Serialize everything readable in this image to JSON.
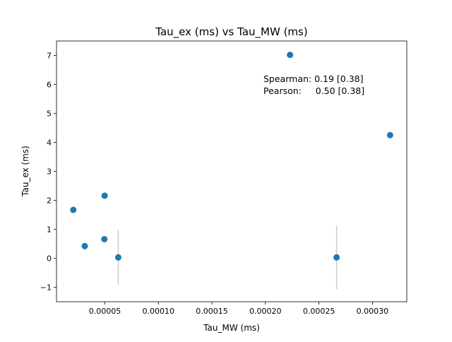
{
  "chart_data": {
    "type": "scatter",
    "title": "Tau_ex (ms) vs Tau_MW (ms)",
    "xlabel": "Tau_MW (ms)",
    "ylabel": "Tau_ex (ms)",
    "xlim": [
      4.8e-06,
      0.0003321
    ],
    "ylim": [
      -1.5,
      7.5
    ],
    "xticks": [
      {
        "value": 5e-05,
        "label": "0.00005"
      },
      {
        "value": 0.0001,
        "label": "0.00010"
      },
      {
        "value": 0.00015,
        "label": "0.00015"
      },
      {
        "value": 0.0002,
        "label": "0.00020"
      },
      {
        "value": 0.00025,
        "label": "0.00025"
      },
      {
        "value": 0.0003,
        "label": "0.00030"
      }
    ],
    "yticks": [
      {
        "value": -1,
        "label": "−1"
      },
      {
        "value": 0,
        "label": "0"
      },
      {
        "value": 1,
        "label": "1"
      },
      {
        "value": 2,
        "label": "2"
      },
      {
        "value": 3,
        "label": "3"
      },
      {
        "value": 4,
        "label": "4"
      },
      {
        "value": 5,
        "label": "5"
      },
      {
        "value": 6,
        "label": "6"
      },
      {
        "value": 7,
        "label": "7"
      }
    ],
    "grid": false,
    "marker_color": "#1f77b4",
    "errorbar_color": "#cccccc",
    "points": [
      {
        "x": 2.05e-05,
        "y": 1.67,
        "yerr": 0
      },
      {
        "x": 3.12e-05,
        "y": 0.42,
        "yerr": 0.12
      },
      {
        "x": 4.98e-05,
        "y": 2.16,
        "yerr": 0
      },
      {
        "x": 4.95e-05,
        "y": 0.66,
        "yerr": 0
      },
      {
        "x": 6.25e-05,
        "y": 0.03,
        "yerr": 0.95
      },
      {
        "x": 0.000223,
        "y": 7.02,
        "yerr": 0
      },
      {
        "x": 0.0002665,
        "y": 0.03,
        "yerr": 1.1
      },
      {
        "x": 0.0003165,
        "y": 4.25,
        "yerr": 0
      }
    ],
    "annotations": [
      "Spearman: 0.19 [0.38]",
      "Pearson:     0.50 [0.38]"
    ]
  }
}
